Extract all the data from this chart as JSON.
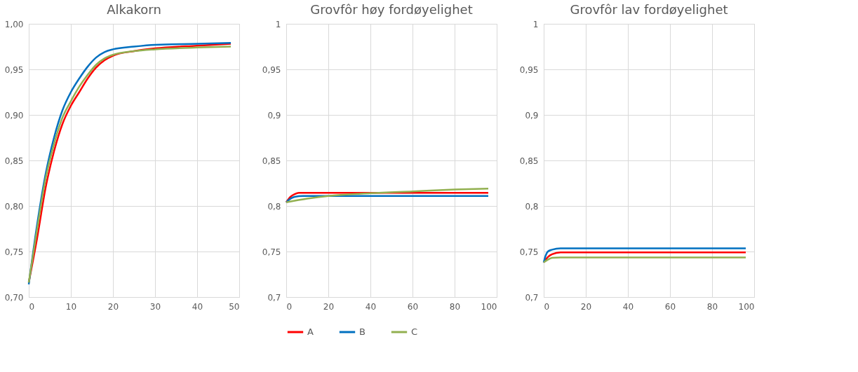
{
  "chart_data": [
    {
      "type": "line",
      "title": "Alkakorn",
      "xlim": [
        0,
        50
      ],
      "xticks": [
        0,
        10,
        20,
        30,
        40,
        50
      ],
      "ylim": [
        0.7,
        1.0
      ],
      "yticks": [
        {
          "value": 0.7,
          "label": "0,70"
        },
        {
          "value": 0.75,
          "label": "0,75"
        },
        {
          "value": 0.8,
          "label": "0,80"
        },
        {
          "value": 0.85,
          "label": "0,85"
        },
        {
          "value": 0.9,
          "label": "0,90"
        },
        {
          "value": 0.95,
          "label": "0,95"
        },
        {
          "value": 1.0,
          "label": "1,00"
        }
      ],
      "grid": true,
      "legend": false,
      "marker": "none",
      "line_style": "solid",
      "series": [
        {
          "color": "#ff0000",
          "x": [
            0,
            2,
            4,
            6,
            8,
            10,
            12,
            14,
            16,
            18,
            20,
            25,
            30,
            40,
            48
          ],
          "values": [
            0.716,
            0.765,
            0.82,
            0.86,
            0.89,
            0.91,
            0.925,
            0.94,
            0.952,
            0.96,
            0.965,
            0.97,
            0.973,
            0.976,
            0.978
          ]
        },
        {
          "color": "#0070c0",
          "x": [
            0,
            2,
            4,
            6,
            8,
            10,
            12,
            14,
            16,
            18,
            20,
            25,
            30,
            40,
            48
          ],
          "values": [
            0.714,
            0.78,
            0.835,
            0.875,
            0.905,
            0.925,
            0.94,
            0.953,
            0.963,
            0.969,
            0.972,
            0.975,
            0.977,
            0.978,
            0.979
          ]
        },
        {
          "color": "#92b050",
          "x": [
            0,
            2,
            4,
            6,
            8,
            10,
            12,
            14,
            16,
            18,
            20,
            25,
            30,
            40,
            48
          ],
          "values": [
            0.716,
            0.775,
            0.83,
            0.868,
            0.897,
            0.915,
            0.931,
            0.944,
            0.955,
            0.962,
            0.966,
            0.97,
            0.972,
            0.974,
            0.975
          ]
        }
      ]
    },
    {
      "type": "line",
      "title": "Grovfôr høy fordøyelighet",
      "xlim": [
        0,
        100
      ],
      "xticks": [
        0,
        20,
        40,
        60,
        80,
        100
      ],
      "ylim": [
        0.7,
        1.0
      ],
      "yticks": [
        {
          "value": 0.7,
          "label": "0,7"
        },
        {
          "value": 0.75,
          "label": "0,75"
        },
        {
          "value": 0.8,
          "label": "0,8"
        },
        {
          "value": 0.85,
          "label": "0,85"
        },
        {
          "value": 0.9,
          "label": "0,9"
        },
        {
          "value": 0.95,
          "label": "0,95"
        },
        {
          "value": 1,
          "label": "1"
        }
      ],
      "grid": true,
      "legend": "bottom",
      "marker": "none",
      "line_style": "solid",
      "series": [
        {
          "name": "A",
          "color": "#ff0000",
          "x": [
            0,
            2,
            4,
            6,
            10,
            96
          ],
          "values": [
            0.804,
            0.81,
            0.813,
            0.8145,
            0.8145,
            0.8145
          ]
        },
        {
          "name": "B",
          "color": "#0070c0",
          "x": [
            0,
            2,
            4,
            8,
            96
          ],
          "values": [
            0.804,
            0.808,
            0.81,
            0.811,
            0.811
          ]
        },
        {
          "name": "C",
          "color": "#92b050",
          "x": [
            0,
            10,
            20,
            40,
            60,
            80,
            96
          ],
          "values": [
            0.804,
            0.808,
            0.811,
            0.814,
            0.816,
            0.818,
            0.819
          ]
        }
      ]
    },
    {
      "type": "line",
      "title": "Grovfôr lav fordøyelighet",
      "xlim": [
        0,
        100
      ],
      "xticks": [
        0,
        20,
        40,
        60,
        80,
        100
      ],
      "ylim": [
        0.7,
        1.0
      ],
      "yticks": [
        {
          "value": 0.7,
          "label": "0,7"
        },
        {
          "value": 0.75,
          "label": "0,75"
        },
        {
          "value": 0.8,
          "label": "0,8"
        },
        {
          "value": 0.85,
          "label": "0,85"
        },
        {
          "value": 0.9,
          "label": "0,9"
        },
        {
          "value": 0.95,
          "label": "0,95"
        },
        {
          "value": 1,
          "label": "1"
        }
      ],
      "grid": true,
      "legend": false,
      "marker": "none",
      "line_style": "solid",
      "series": [
        {
          "color": "#ff0000",
          "x": [
            0,
            2,
            4,
            8,
            96
          ],
          "values": [
            0.738,
            0.744,
            0.747,
            0.749,
            0.749
          ]
        },
        {
          "color": "#0070c0",
          "x": [
            0,
            1,
            2,
            4,
            8,
            96
          ],
          "values": [
            0.738,
            0.746,
            0.75,
            0.752,
            0.7535,
            0.7535
          ]
        },
        {
          "color": "#92b050",
          "x": [
            0,
            2,
            4,
            8,
            96
          ],
          "values": [
            0.738,
            0.741,
            0.743,
            0.7435,
            0.7435
          ]
        }
      ]
    }
  ]
}
